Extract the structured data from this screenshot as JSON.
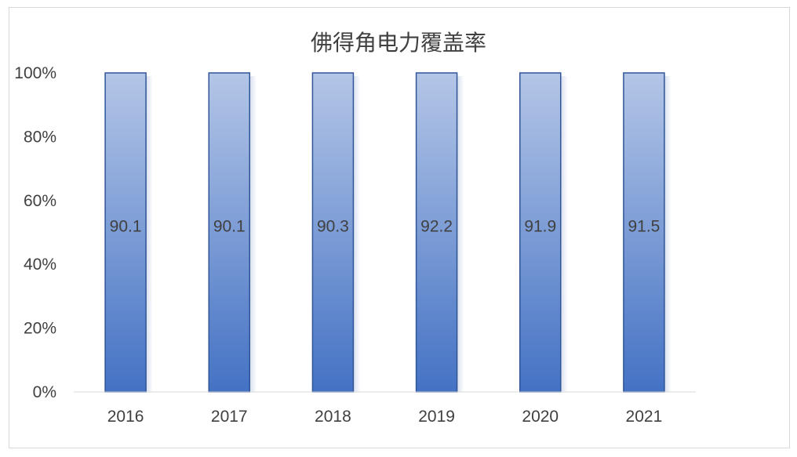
{
  "chart_data": {
    "type": "bar",
    "title": "佛得角电力覆盖率",
    "xlabel": "",
    "ylabel": "",
    "categories": [
      "2016",
      "2017",
      "2018",
      "2019",
      "2020",
      "2021"
    ],
    "values": [
      90.1,
      90.1,
      90.3,
      92.2,
      91.9,
      91.5
    ],
    "data_labels": [
      "90.1",
      "90.1",
      "90.3",
      "92.2",
      "91.9",
      "91.5"
    ],
    "ylim": [
      0,
      100
    ],
    "y_ticks": [
      "0%",
      "20%",
      "40%",
      "60%",
      "80%",
      "100%"
    ],
    "grid": false,
    "legend": "none",
    "colors": {
      "bar_top": "#b4c6e7",
      "bar_bottom": "#4472c4",
      "bar_border": "#2f5597",
      "text": "#404040",
      "axis": "#d9d9d9"
    }
  }
}
